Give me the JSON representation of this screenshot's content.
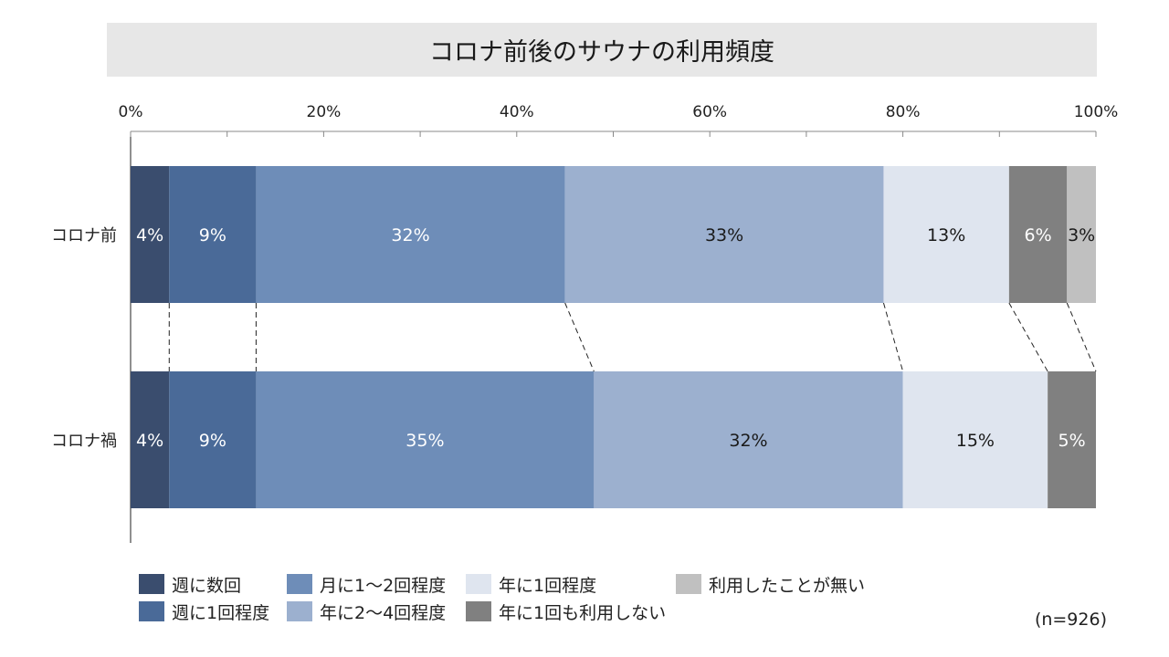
{
  "chart_data": {
    "type": "bar",
    "orientation": "horizontal-stacked-100",
    "title": "コロナ前後のサウナの利用頻度",
    "xlim": [
      0,
      100
    ],
    "x_ticks": [
      "0%",
      "20%",
      "40%",
      "60%",
      "80%",
      "100%"
    ],
    "categories": [
      "コロナ前",
      "コロナ禍"
    ],
    "series": [
      {
        "name": "週に数回",
        "color": "#3a4d6e",
        "values": [
          4,
          4
        ],
        "labels": [
          "4%",
          "4%"
        ],
        "label_color": "#ffffff"
      },
      {
        "name": "週に1回程度",
        "color": "#4a6a98",
        "values": [
          9,
          9
        ],
        "labels": [
          "9%",
          "9%"
        ],
        "label_color": "#ffffff"
      },
      {
        "name": "月に1～2回程度",
        "color": "#6e8db8",
        "values": [
          32,
          35
        ],
        "labels": [
          "32%",
          "35%"
        ],
        "label_color": "#ffffff"
      },
      {
        "name": "年に2～4回程度",
        "color": "#9cb0cf",
        "values": [
          33,
          32
        ],
        "labels": [
          "33%",
          "32%"
        ],
        "label_color": "#1a1a1a"
      },
      {
        "name": "年に1回程度",
        "color": "#dfe5ef",
        "values": [
          13,
          15
        ],
        "labels": [
          "13%",
          "15%"
        ],
        "label_color": "#1a1a1a"
      },
      {
        "name": "年に1回も利用しない",
        "color": "#808080",
        "values": [
          6,
          5
        ],
        "labels": [
          "6%",
          "5%"
        ],
        "label_color": "#ffffff"
      },
      {
        "name": "利用したことが無い",
        "color": "#c0c0c0",
        "values": [
          3,
          0
        ],
        "labels": [
          "3%",
          ""
        ],
        "label_color": "#1a1a1a"
      }
    ],
    "legend": {
      "position": "bottom",
      "order": [
        0,
        2,
        4,
        6,
        1,
        3,
        5
      ]
    },
    "sample_size": "(n=926)"
  }
}
